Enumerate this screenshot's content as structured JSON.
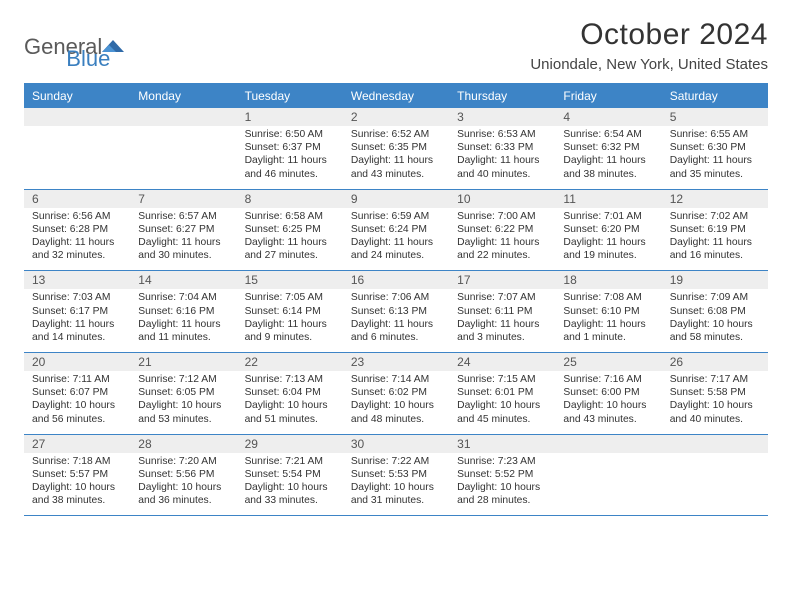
{
  "colors": {
    "accent": "#3d84c6",
    "daynum_bg": "#eeeeee",
    "text": "#333333",
    "logo_gray": "#5a5a5a",
    "logo_blue": "#3a7fbf",
    "background": "#ffffff"
  },
  "typography": {
    "title_fontsize": 30,
    "location_fontsize": 15,
    "weekday_fontsize": 12,
    "daynum_fontsize": 12,
    "cell_fontsize": 10.3
  },
  "logo": {
    "part1": "General",
    "part2": "Blue"
  },
  "title": "October 2024",
  "location": "Uniondale, New York, United States",
  "weekdays": [
    "Sunday",
    "Monday",
    "Tuesday",
    "Wednesday",
    "Thursday",
    "Friday",
    "Saturday"
  ],
  "weeks": [
    [
      null,
      null,
      {
        "n": "1",
        "sr": "6:50 AM",
        "ss": "6:37 PM",
        "dh": 11,
        "dm": 46
      },
      {
        "n": "2",
        "sr": "6:52 AM",
        "ss": "6:35 PM",
        "dh": 11,
        "dm": 43
      },
      {
        "n": "3",
        "sr": "6:53 AM",
        "ss": "6:33 PM",
        "dh": 11,
        "dm": 40
      },
      {
        "n": "4",
        "sr": "6:54 AM",
        "ss": "6:32 PM",
        "dh": 11,
        "dm": 38
      },
      {
        "n": "5",
        "sr": "6:55 AM",
        "ss": "6:30 PM",
        "dh": 11,
        "dm": 35
      }
    ],
    [
      {
        "n": "6",
        "sr": "6:56 AM",
        "ss": "6:28 PM",
        "dh": 11,
        "dm": 32
      },
      {
        "n": "7",
        "sr": "6:57 AM",
        "ss": "6:27 PM",
        "dh": 11,
        "dm": 30
      },
      {
        "n": "8",
        "sr": "6:58 AM",
        "ss": "6:25 PM",
        "dh": 11,
        "dm": 27
      },
      {
        "n": "9",
        "sr": "6:59 AM",
        "ss": "6:24 PM",
        "dh": 11,
        "dm": 24
      },
      {
        "n": "10",
        "sr": "7:00 AM",
        "ss": "6:22 PM",
        "dh": 11,
        "dm": 22
      },
      {
        "n": "11",
        "sr": "7:01 AM",
        "ss": "6:20 PM",
        "dh": 11,
        "dm": 19
      },
      {
        "n": "12",
        "sr": "7:02 AM",
        "ss": "6:19 PM",
        "dh": 11,
        "dm": 16
      }
    ],
    [
      {
        "n": "13",
        "sr": "7:03 AM",
        "ss": "6:17 PM",
        "dh": 11,
        "dm": 14
      },
      {
        "n": "14",
        "sr": "7:04 AM",
        "ss": "6:16 PM",
        "dh": 11,
        "dm": 11
      },
      {
        "n": "15",
        "sr": "7:05 AM",
        "ss": "6:14 PM",
        "dh": 11,
        "dm": 9
      },
      {
        "n": "16",
        "sr": "7:06 AM",
        "ss": "6:13 PM",
        "dh": 11,
        "dm": 6
      },
      {
        "n": "17",
        "sr": "7:07 AM",
        "ss": "6:11 PM",
        "dh": 11,
        "dm": 3
      },
      {
        "n": "18",
        "sr": "7:08 AM",
        "ss": "6:10 PM",
        "dh": 11,
        "dm": 1
      },
      {
        "n": "19",
        "sr": "7:09 AM",
        "ss": "6:08 PM",
        "dh": 10,
        "dm": 58
      }
    ],
    [
      {
        "n": "20",
        "sr": "7:11 AM",
        "ss": "6:07 PM",
        "dh": 10,
        "dm": 56
      },
      {
        "n": "21",
        "sr": "7:12 AM",
        "ss": "6:05 PM",
        "dh": 10,
        "dm": 53
      },
      {
        "n": "22",
        "sr": "7:13 AM",
        "ss": "6:04 PM",
        "dh": 10,
        "dm": 51
      },
      {
        "n": "23",
        "sr": "7:14 AM",
        "ss": "6:02 PM",
        "dh": 10,
        "dm": 48
      },
      {
        "n": "24",
        "sr": "7:15 AM",
        "ss": "6:01 PM",
        "dh": 10,
        "dm": 45
      },
      {
        "n": "25",
        "sr": "7:16 AM",
        "ss": "6:00 PM",
        "dh": 10,
        "dm": 43
      },
      {
        "n": "26",
        "sr": "7:17 AM",
        "ss": "5:58 PM",
        "dh": 10,
        "dm": 40
      }
    ],
    [
      {
        "n": "27",
        "sr": "7:18 AM",
        "ss": "5:57 PM",
        "dh": 10,
        "dm": 38
      },
      {
        "n": "28",
        "sr": "7:20 AM",
        "ss": "5:56 PM",
        "dh": 10,
        "dm": 36
      },
      {
        "n": "29",
        "sr": "7:21 AM",
        "ss": "5:54 PM",
        "dh": 10,
        "dm": 33
      },
      {
        "n": "30",
        "sr": "7:22 AM",
        "ss": "5:53 PM",
        "dh": 10,
        "dm": 31
      },
      {
        "n": "31",
        "sr": "7:23 AM",
        "ss": "5:52 PM",
        "dh": 10,
        "dm": 28
      },
      null,
      null
    ]
  ],
  "labels": {
    "sunrise": "Sunrise:",
    "sunset": "Sunset:",
    "daylight_prefix": "Daylight:",
    "hours_word": "hours",
    "and_word": "and",
    "minute_word": "minute.",
    "minutes_word": "minutes."
  }
}
